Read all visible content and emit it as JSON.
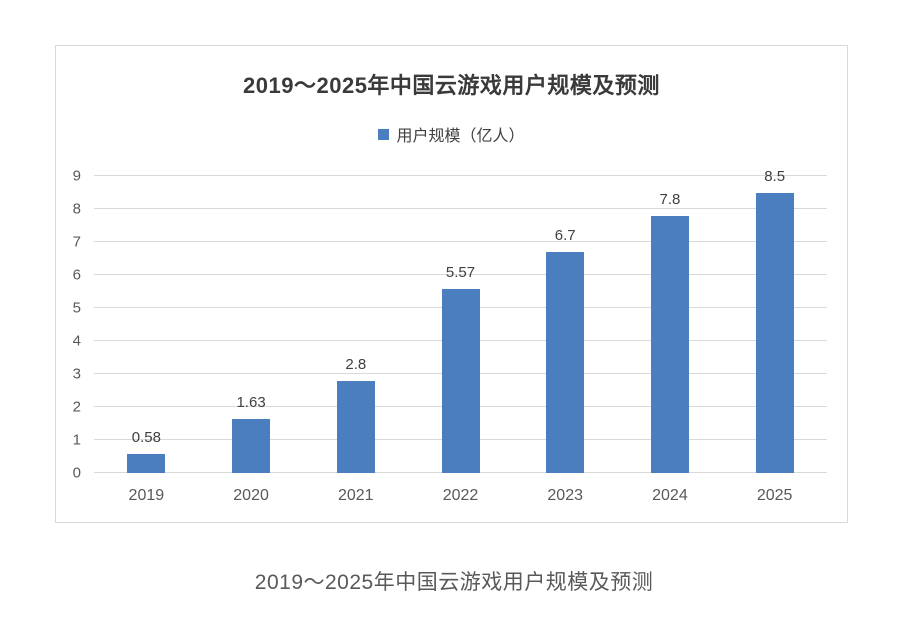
{
  "page": {
    "caption": "2019～2025年中国云游戏用户规模及预测",
    "background_color": "#ffffff",
    "chart_border_color": "#d9d9d9"
  },
  "chart_data": {
    "type": "bar",
    "title": "2019～2025年中国云游戏用户规模及预测",
    "legend": {
      "label": "用户规模（亿人）",
      "marker_color": "#4A7EBE",
      "position": "top-center"
    },
    "categories": [
      "2019",
      "2020",
      "2021",
      "2022",
      "2023",
      "2024",
      "2025"
    ],
    "values": [
      0.58,
      1.63,
      2.8,
      5.57,
      6.7,
      7.8,
      8.5
    ],
    "value_labels": [
      "0.58",
      "1.63",
      "2.8",
      "5.57",
      "6.7",
      "7.8",
      "8.5"
    ],
    "xlabel": "",
    "ylabel": "",
    "ylim": [
      0,
      9
    ],
    "yticks": [
      0,
      1,
      2,
      3,
      4,
      5,
      6,
      7,
      8,
      9
    ],
    "grid": true,
    "bar_color": "#4A7EBE",
    "gridline_color": "#d9d9d9",
    "axis_label_color": "#595959",
    "data_label_color": "#404040"
  }
}
